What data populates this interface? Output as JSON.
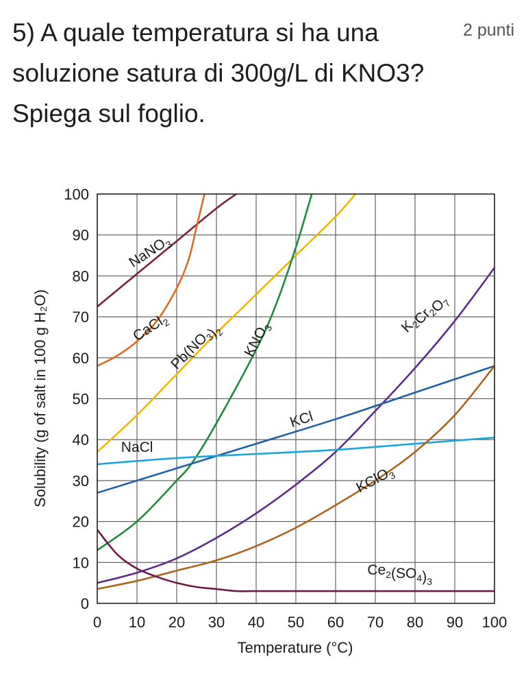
{
  "question": {
    "text": "5) A quale temperatura si ha una soluzione satura di 300g/L di KNO3? Spiega sul foglio.",
    "points": "2 punti"
  },
  "chart_data": {
    "type": "line",
    "xlabel": "Temperature (°C)",
    "ylabel": "Solubility (g of salt in 100 g H₂O)",
    "xlim": [
      0,
      100
    ],
    "ylim": [
      0,
      100
    ],
    "xticks": [
      0,
      10,
      20,
      30,
      40,
      50,
      60,
      70,
      80,
      90,
      100
    ],
    "yticks": [
      0,
      10,
      20,
      30,
      40,
      50,
      60,
      70,
      80,
      90,
      100
    ],
    "grid": true,
    "series": [
      {
        "name": "NaNO₃",
        "color": "#7a1f3d",
        "x": [
          0,
          10,
          20,
          30,
          35
        ],
        "y": [
          72.5,
          80.5,
          88.5,
          96.5,
          100
        ]
      },
      {
        "name": "CaCl₂",
        "color": "#e26a1c",
        "x": [
          0,
          5,
          10,
          15,
          20,
          23,
          25,
          27
        ],
        "y": [
          58,
          60.5,
          64,
          69,
          77,
          84,
          92,
          100
        ]
      },
      {
        "name": "Pb(NO₃)₂",
        "color": "#f0b900",
        "x": [
          0,
          10,
          20,
          30,
          40,
          50,
          60,
          65
        ],
        "y": [
          37,
          46,
          56,
          66,
          75.5,
          85,
          94.5,
          100
        ]
      },
      {
        "name": "KNO₃",
        "color": "#1f8a3a",
        "x": [
          0,
          10,
          20,
          24,
          30,
          40,
          45,
          50,
          54
        ],
        "y": [
          13,
          20,
          30,
          34.5,
          44,
          62,
          73,
          87,
          100
        ]
      },
      {
        "name": "K₂Cr₂O₇",
        "color": "#5b2a86",
        "x": [
          0,
          10,
          20,
          30,
          40,
          50,
          60,
          70,
          80,
          90,
          100
        ],
        "y": [
          5,
          7.5,
          11,
          16,
          22,
          29,
          37,
          47,
          57.5,
          69,
          82
        ]
      },
      {
        "name": "KCl",
        "color": "#1f5fa6",
        "x": [
          0,
          20,
          40,
          60,
          80,
          100
        ],
        "y": [
          27,
          33,
          39,
          45,
          51.5,
          58
        ]
      },
      {
        "name": "NaCl",
        "color": "#1aa5dc",
        "x": [
          0,
          20,
          40,
          60,
          80,
          100
        ],
        "y": [
          34,
          35.5,
          36.5,
          37.5,
          39,
          40.5
        ]
      },
      {
        "name": "KClO₃",
        "color": "#a9641a",
        "x": [
          0,
          10,
          20,
          30,
          40,
          50,
          60,
          70,
          80,
          90,
          100
        ],
        "y": [
          3.5,
          5.5,
          8,
          10.5,
          14,
          18.5,
          24,
          30,
          37,
          46,
          58
        ]
      },
      {
        "name": "Ce₂(SO₄)₃",
        "color": "#6d1a45",
        "x": [
          0,
          5,
          10,
          15,
          20,
          25,
          30,
          35,
          40,
          60,
          80,
          100
        ],
        "y": [
          18,
          12,
          8.5,
          6.5,
          5,
          4,
          3.5,
          3,
          3,
          3,
          3,
          3
        ]
      }
    ],
    "labels": [
      {
        "series": 0,
        "at": [
          9,
          82
        ],
        "angle": -33
      },
      {
        "series": 1,
        "at": [
          10,
          64
        ],
        "angle": -33
      },
      {
        "series": 2,
        "at": [
          20,
          57
        ],
        "angle": -45
      },
      {
        "series": 3,
        "at": [
          39,
          60
        ],
        "angle": -62
      },
      {
        "series": 4,
        "at": [
          78,
          66
        ],
        "angle": -45
      },
      {
        "series": 5,
        "at": [
          49,
          43
        ],
        "angle": -18
      },
      {
        "series": 6,
        "at": [
          6,
          37
        ],
        "angle": 0
      },
      {
        "series": 7,
        "at": [
          66,
          27
        ],
        "angle": -28
      },
      {
        "series": 8,
        "at": [
          68,
          7
        ],
        "angle": 0
      }
    ]
  }
}
